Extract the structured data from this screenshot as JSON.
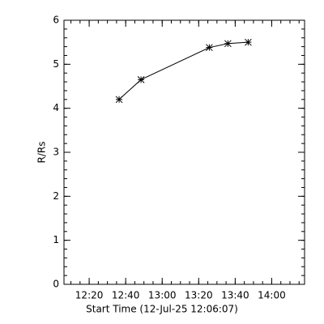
{
  "chart_data": {
    "type": "line",
    "x_label": "Start Time (12-Jul-25 12:06:07)",
    "y_label": "R/Rs",
    "x": [
      756.4,
      768.4,
      805.8,
      816,
      827.1
    ],
    "values": [
      4.2,
      4.65,
      5.38,
      5.47,
      5.5
    ],
    "color": "#000000",
    "xlim": [
      726.2,
      858
    ],
    "xticks": [
      {
        "value": 740,
        "label": "12:20"
      },
      {
        "value": 760,
        "label": "12:40"
      },
      {
        "value": 780,
        "label": "13:00"
      },
      {
        "value": 800,
        "label": "13:20"
      },
      {
        "value": 820,
        "label": "13:40"
      },
      {
        "value": 840,
        "label": "14:00"
      }
    ],
    "ylim": [
      0,
      6
    ],
    "yticks": [
      0,
      1,
      2,
      3,
      4,
      5,
      6
    ]
  }
}
